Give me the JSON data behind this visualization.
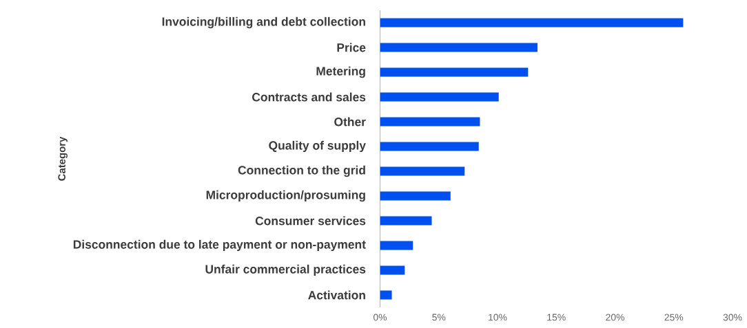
{
  "chart_data": {
    "type": "bar",
    "orientation": "horizontal",
    "ylabel": "Category",
    "categories": [
      "Invoicing/billing and debt collection",
      "Price",
      "Metering",
      "Contracts and sales",
      "Other",
      "Quality of supply",
      "Connection to the grid",
      "Microproduction/prosuming",
      "Consumer services",
      "Disconnection due to late payment or non-payment",
      "Unfair commercial practices",
      "Activation"
    ],
    "values": [
      25.8,
      13.4,
      12.6,
      10.1,
      8.5,
      8.4,
      7.2,
      6.0,
      4.4,
      2.8,
      2.1,
      1.0
    ],
    "color": "#0050ef",
    "xlim": [
      0,
      30
    ],
    "xticks": [
      {
        "value": 0,
        "label": "0%"
      },
      {
        "value": 5,
        "label": "5%"
      },
      {
        "value": 10,
        "label": "10%"
      },
      {
        "value": 15,
        "label": "15%"
      },
      {
        "value": 20,
        "label": "20%"
      },
      {
        "value": 25,
        "label": "25%"
      },
      {
        "value": 30,
        "label": "30%"
      }
    ]
  }
}
